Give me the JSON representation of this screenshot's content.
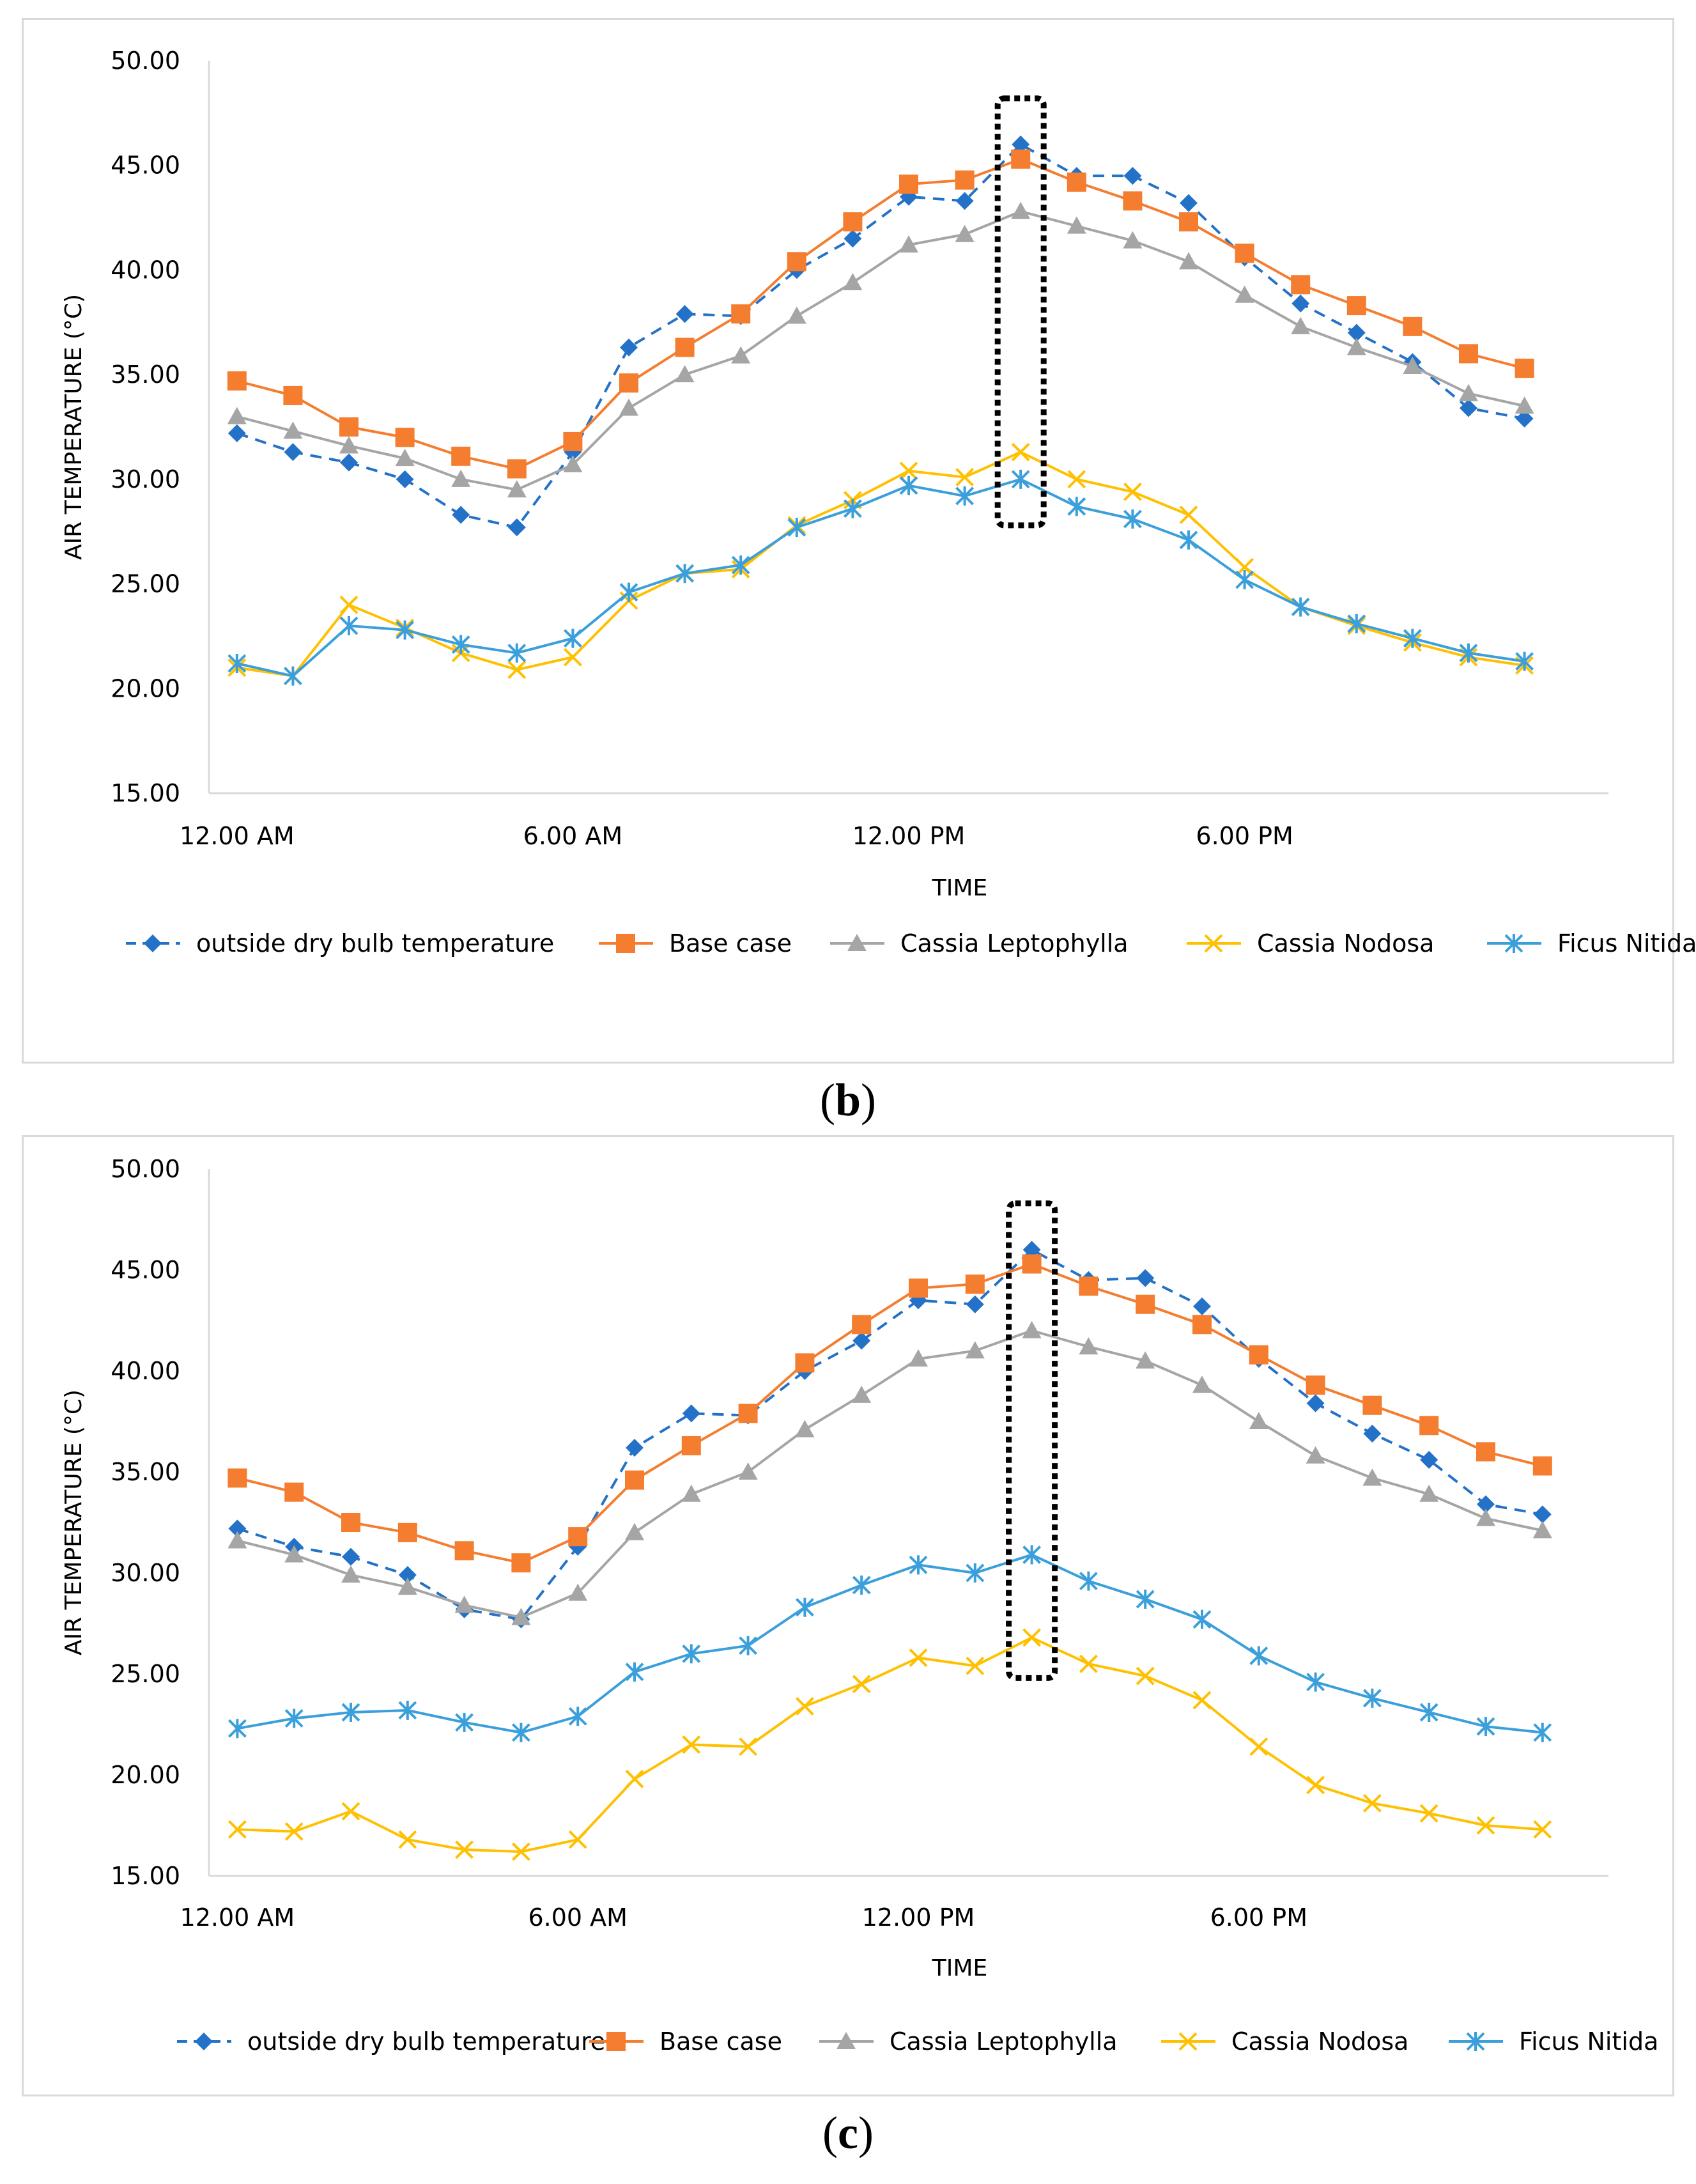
{
  "captions": {
    "b_open": "(",
    "b_letter": "b",
    "b_close": ")",
    "c_open": "(",
    "c_letter": "c",
    "c_close": ")"
  },
  "colors": {
    "outside": "#2472C8",
    "base": "#F47D30",
    "leptophylla": "#A5A5A5",
    "nodosa": "#FFC000",
    "nitida": "#3A9FDB",
    "grid": "#D9D9D9"
  },
  "chart_data": [
    {
      "id": "b",
      "type": "line",
      "xlabel": "TIME",
      "ylabel": "AIR TEMPERATURE (°C)",
      "ylim": [
        15,
        50
      ],
      "yticks": [
        "50.00",
        "45.00",
        "40.00",
        "35.00",
        "30.00",
        "25.00",
        "20.00",
        "15.00"
      ],
      "xticks": [
        {
          "label": "12.00 AM",
          "index": 0
        },
        {
          "label": "6.00 AM",
          "index": 6
        },
        {
          "label": "12.00 PM",
          "index": 12
        },
        {
          "label": "6.00 PM",
          "index": 18
        }
      ],
      "highlight_index": 14,
      "highlight_range": [
        27.8,
        48.2
      ],
      "series": [
        {
          "name": "outside dry bulb temperature",
          "key": "outside",
          "marker": "diamond",
          "dash": true,
          "values": [
            32.2,
            31.3,
            30.8,
            30.0,
            28.3,
            27.7,
            31.3,
            36.3,
            37.9,
            37.8,
            40.0,
            41.5,
            43.5,
            43.3,
            46.0,
            44.5,
            44.5,
            43.2,
            40.6,
            38.4,
            37.0,
            35.6,
            33.4,
            32.9
          ]
        },
        {
          "name": "Base case",
          "key": "base",
          "marker": "square",
          "dash": false,
          "values": [
            34.7,
            34.0,
            32.5,
            32.0,
            31.1,
            30.5,
            31.8,
            34.6,
            36.3,
            37.9,
            40.4,
            42.3,
            44.1,
            44.3,
            45.3,
            44.2,
            43.3,
            42.3,
            40.8,
            39.3,
            38.3,
            37.3,
            36.0,
            35.3
          ]
        },
        {
          "name": "Cassia Leptophylla",
          "key": "leptophylla",
          "marker": "triangle",
          "dash": false,
          "values": [
            33.0,
            32.3,
            31.6,
            31.0,
            30.0,
            29.5,
            30.7,
            33.4,
            35.0,
            35.9,
            37.8,
            39.4,
            41.2,
            41.7,
            42.8,
            42.1,
            41.4,
            40.4,
            38.8,
            37.3,
            36.3,
            35.4,
            34.1,
            33.5
          ]
        },
        {
          "name": "Cassia Nodosa",
          "key": "nodosa",
          "marker": "x",
          "dash": false,
          "values": [
            21.0,
            20.6,
            24.0,
            22.9,
            21.7,
            20.9,
            21.5,
            24.2,
            25.5,
            25.7,
            27.8,
            29.0,
            30.4,
            30.1,
            31.3,
            30.0,
            29.4,
            28.3,
            25.8,
            23.9,
            23.0,
            22.2,
            21.5,
            21.1
          ]
        },
        {
          "name": "Ficus Nitida",
          "key": "nitida",
          "marker": "star",
          "dash": false,
          "values": [
            21.2,
            20.6,
            23.0,
            22.8,
            22.1,
            21.7,
            22.4,
            24.6,
            25.5,
            25.9,
            27.7,
            28.6,
            29.7,
            29.2,
            30.0,
            28.7,
            28.1,
            27.1,
            25.2,
            23.9,
            23.1,
            22.4,
            21.7,
            21.3
          ]
        }
      ]
    },
    {
      "id": "c",
      "type": "line",
      "xlabel": "TIME",
      "ylabel": "AIR TEMPERATURE (°C)",
      "ylim": [
        15,
        50
      ],
      "yticks": [
        "50.00",
        "45.00",
        "40.00",
        "35.00",
        "30.00",
        "25.00",
        "20.00",
        "15.00"
      ],
      "xticks": [
        {
          "label": "12.00 AM",
          "index": 0
        },
        {
          "label": "6.00 AM",
          "index": 6
        },
        {
          "label": "12.00 PM",
          "index": 12
        },
        {
          "label": "6.00 PM",
          "index": 18
        }
      ],
      "highlight_index": 14,
      "highlight_range": [
        24.8,
        48.3
      ],
      "series": [
        {
          "name": "outside dry bulb temperature",
          "key": "outside",
          "marker": "diamond",
          "dash": true,
          "values": [
            32.2,
            31.3,
            30.8,
            29.9,
            28.2,
            27.7,
            31.3,
            36.2,
            37.9,
            37.8,
            40.0,
            41.5,
            43.5,
            43.3,
            46.0,
            44.5,
            44.6,
            43.2,
            40.6,
            38.4,
            36.9,
            35.6,
            33.4,
            32.9
          ]
        },
        {
          "name": "Base case",
          "key": "base",
          "marker": "square",
          "dash": false,
          "values": [
            34.7,
            34.0,
            32.5,
            32.0,
            31.1,
            30.5,
            31.8,
            34.6,
            36.3,
            37.9,
            40.4,
            42.3,
            44.1,
            44.3,
            45.3,
            44.2,
            43.3,
            42.3,
            40.8,
            39.3,
            38.3,
            37.3,
            36.0,
            35.3
          ]
        },
        {
          "name": "Cassia Leptophylla",
          "key": "leptophylla",
          "marker": "triangle",
          "dash": false,
          "values": [
            31.6,
            30.9,
            29.9,
            29.3,
            28.4,
            27.8,
            29.0,
            32.0,
            33.9,
            35.0,
            37.1,
            38.8,
            40.6,
            41.0,
            42.0,
            41.2,
            40.5,
            39.3,
            37.5,
            35.8,
            34.7,
            33.9,
            32.7,
            32.1
          ]
        },
        {
          "name": "Cassia Nodosa",
          "key": "nodosa",
          "marker": "x",
          "dash": false,
          "values": [
            17.3,
            17.2,
            18.2,
            16.8,
            16.3,
            16.2,
            16.8,
            19.8,
            21.5,
            21.4,
            23.4,
            24.5,
            25.8,
            25.4,
            26.8,
            25.5,
            24.9,
            23.7,
            21.4,
            19.5,
            18.6,
            18.1,
            17.5,
            17.3
          ]
        },
        {
          "name": "Ficus Nitida",
          "key": "nitida",
          "marker": "star",
          "dash": false,
          "values": [
            22.3,
            22.8,
            23.1,
            23.2,
            22.6,
            22.1,
            22.9,
            25.1,
            26.0,
            26.4,
            28.3,
            29.4,
            30.4,
            30.0,
            30.9,
            29.6,
            28.7,
            27.7,
            25.9,
            24.6,
            23.8,
            23.1,
            22.4,
            22.1
          ]
        }
      ]
    }
  ]
}
